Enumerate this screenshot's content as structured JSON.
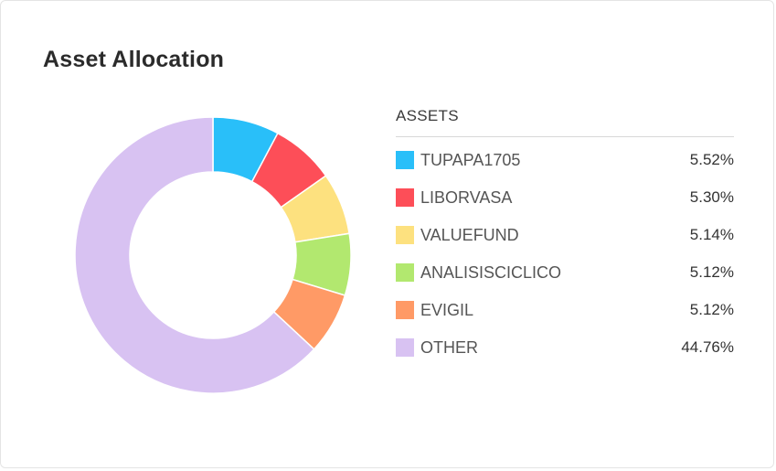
{
  "title": "Asset Allocation",
  "legend": {
    "header": "ASSETS"
  },
  "chart_data": {
    "type": "pie",
    "title": "Asset Allocation",
    "legend_position": "right",
    "slices": [
      {
        "label": "TUPAPA1705",
        "value": 5.52,
        "value_label": "5.52%",
        "color": "#29bff9"
      },
      {
        "label": "LIBORVASA",
        "value": 5.3,
        "value_label": "5.30%",
        "color": "#fd4e58"
      },
      {
        "label": "VALUEFUND",
        "value": 5.14,
        "value_label": "5.14%",
        "color": "#fde17f"
      },
      {
        "label": "ANALISISCICLICO",
        "value": 5.12,
        "value_label": "5.12%",
        "color": "#b2e86f"
      },
      {
        "label": "EVIGIL",
        "value": 5.12,
        "value_label": "5.12%",
        "color": "#ff9a66"
      },
      {
        "label": "OTHER",
        "value": 44.76,
        "value_label": "44.76%",
        "color": "#d8c2f2"
      }
    ]
  }
}
